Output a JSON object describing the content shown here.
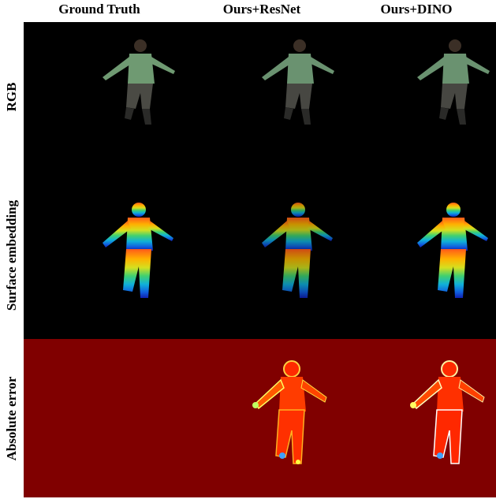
{
  "columns": [
    "Ground Truth",
    "Ours+ResNet",
    "Ours+DINO"
  ],
  "rows": [
    "RGB",
    "Surface embedding",
    "Absolute error"
  ],
  "colors": {
    "background_black": "#000000",
    "error_background": "#800000"
  }
}
